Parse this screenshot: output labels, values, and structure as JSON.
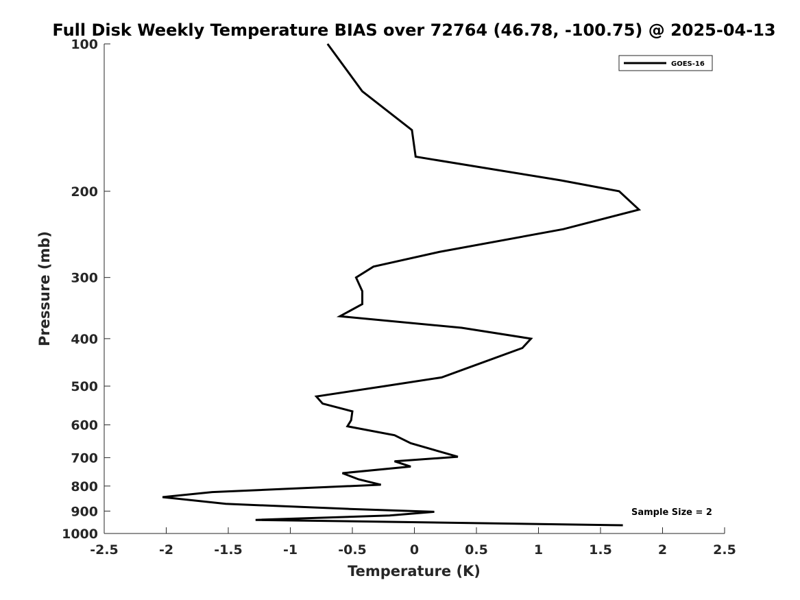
{
  "chart_data": {
    "type": "line",
    "title": "Full Disk Weekly Temperature BIAS over 72764 (46.78, -100.75) @ 2025-04-13",
    "xlabel": "Temperature (K)",
    "ylabel": "Pressure (mb)",
    "xlim": [
      -2.5,
      2.5
    ],
    "ylim": [
      1000,
      100
    ],
    "y_scale": "log",
    "y_reversed": true,
    "x_ticks": [
      -2.5,
      -2,
      -1.5,
      -1,
      -0.5,
      0,
      0.5,
      1,
      1.5,
      2,
      2.5
    ],
    "x_tick_labels": [
      "-2.5",
      "-2",
      "-1.5",
      "-1",
      "-0.5",
      "0",
      "0.5",
      "1",
      "1.5",
      "2",
      "2.5"
    ],
    "y_ticks": [
      100,
      200,
      300,
      400,
      500,
      600,
      700,
      800,
      900,
      1000
    ],
    "y_tick_labels": [
      "100",
      "200",
      "300",
      "400",
      "500",
      "600",
      "700",
      "800",
      "900",
      "1000"
    ],
    "grid": false,
    "legend_position": "top-right",
    "series": [
      {
        "name": "GOES-16",
        "color": "#000000",
        "points": [
          {
            "x": -0.7,
            "y": 100
          },
          {
            "x": -0.42,
            "y": 125
          },
          {
            "x": -0.02,
            "y": 150
          },
          {
            "x": 0.01,
            "y": 170
          },
          {
            "x": 1.18,
            "y": 190
          },
          {
            "x": 1.65,
            "y": 200
          },
          {
            "x": 1.81,
            "y": 218
          },
          {
            "x": 1.2,
            "y": 239
          },
          {
            "x": 0.2,
            "y": 266
          },
          {
            "x": -0.33,
            "y": 285
          },
          {
            "x": -0.47,
            "y": 300
          },
          {
            "x": -0.42,
            "y": 320
          },
          {
            "x": -0.42,
            "y": 340
          },
          {
            "x": -0.6,
            "y": 360
          },
          {
            "x": 0.38,
            "y": 380
          },
          {
            "x": 0.94,
            "y": 400
          },
          {
            "x": 0.87,
            "y": 418
          },
          {
            "x": 0.45,
            "y": 457
          },
          {
            "x": 0.22,
            "y": 480
          },
          {
            "x": -0.24,
            "y": 500
          },
          {
            "x": -0.79,
            "y": 525
          },
          {
            "x": -0.74,
            "y": 543
          },
          {
            "x": -0.5,
            "y": 563
          },
          {
            "x": -0.51,
            "y": 587
          },
          {
            "x": -0.54,
            "y": 604
          },
          {
            "x": -0.16,
            "y": 630
          },
          {
            "x": -0.03,
            "y": 654
          },
          {
            "x": 0.35,
            "y": 697
          },
          {
            "x": -0.16,
            "y": 712
          },
          {
            "x": -0.03,
            "y": 730
          },
          {
            "x": -0.58,
            "y": 753
          },
          {
            "x": -0.45,
            "y": 775
          },
          {
            "x": -0.27,
            "y": 795
          },
          {
            "x": -1.63,
            "y": 823
          },
          {
            "x": -2.03,
            "y": 843
          },
          {
            "x": -1.52,
            "y": 870
          },
          {
            "x": -0.52,
            "y": 891
          },
          {
            "x": 0.16,
            "y": 903
          },
          {
            "x": -0.2,
            "y": 919
          },
          {
            "x": -1.28,
            "y": 938
          },
          {
            "x": 1.68,
            "y": 962
          }
        ]
      }
    ],
    "annotations": [
      "Sample Size = 2"
    ]
  }
}
